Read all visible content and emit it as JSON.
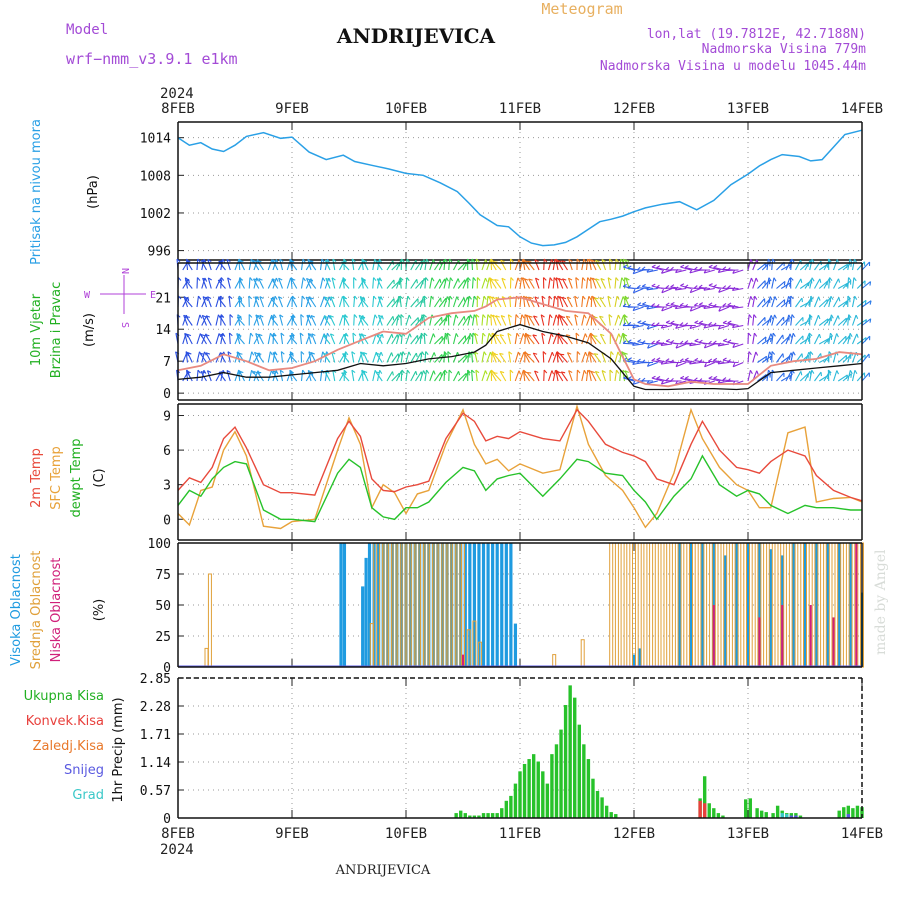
{
  "header": {
    "model_label": "Model",
    "model_name": "wrf−nmm_v3.9.1 e1km",
    "station": "ANDRIJEVICA",
    "product": "Meteogram",
    "lonlat": "lon,lat (19.7812E, 42.7188N)",
    "elevation": "Nadmorska Visina 779m",
    "model_elevation": "Nadmorska Visina u modelu 1045.44m"
  },
  "footer": {
    "station": "ANDRIJEVICA",
    "credit": "made by Angel"
  },
  "time_axis": {
    "year": "2024",
    "labels": [
      "8FEB",
      "9FEB",
      "10FEB",
      "11FEB",
      "12FEB",
      "13FEB",
      "14FEB"
    ]
  },
  "colors": {
    "pressure": "#2aa0e6",
    "temp2m": "#e84a3c",
    "sfc_temp": "#e8a23a",
    "dewpoint": "#27c22a",
    "high_cloud": "#1f9be0",
    "mid_cloud": "#e0a03a",
    "low_cloud": "#d0207a",
    "precip_total": "#27c22a",
    "precip_conv": "#e8403c",
    "precip_frozen": "#e8782a",
    "snow": "#5a5ae0",
    "hail": "#3ac8c8",
    "wind_axis": "#b040d8"
  },
  "chart_data": [
    {
      "id": "pressure",
      "type": "line",
      "ylabel_left": "Pritisak na nivou mora",
      "unit": "(hPa)",
      "yticks": [
        996,
        1002,
        1008,
        1014
      ],
      "ylim": [
        994.5,
        1016.5
      ],
      "x_days": [
        0,
        0.1,
        0.2,
        0.3,
        0.4,
        0.5,
        0.6,
        0.75,
        0.9,
        1.0,
        1.15,
        1.3,
        1.45,
        1.55,
        1.7,
        1.85,
        2.0,
        2.15,
        2.3,
        2.45,
        2.55,
        2.65,
        2.8,
        2.9,
        3.0,
        3.1,
        3.2,
        3.3,
        3.4,
        3.5,
        3.6,
        3.7,
        3.8,
        3.9,
        4.0,
        4.1,
        4.25,
        4.4,
        4.55,
        4.7,
        4.85,
        5.0,
        5.1,
        5.2,
        5.3,
        5.45,
        5.55,
        5.65,
        5.75,
        5.85,
        6.0
      ],
      "values": [
        1014,
        1012.8,
        1013.2,
        1012.2,
        1011.8,
        1012.8,
        1014.2,
        1014.8,
        1013.9,
        1014.1,
        1011.7,
        1010.5,
        1011.2,
        1010.2,
        1009.6,
        1009.0,
        1008.3,
        1008.0,
        1006.8,
        1005.4,
        1003.6,
        1001.7,
        1000.0,
        999.8,
        998.2,
        997.2,
        996.8,
        996.9,
        997.3,
        998.2,
        999.4,
        1000.6,
        1001.0,
        1001.5,
        1002.2,
        1002.8,
        1003.4,
        1003.8,
        1002.5,
        1004.0,
        1006.5,
        1008.2,
        1009.5,
        1010.5,
        1011.3,
        1011.0,
        1010.3,
        1010.5,
        1012.5,
        1014.5,
        1015.2
      ]
    },
    {
      "id": "wind",
      "type": "line",
      "ylabel_left": "10m Vjetar",
      "ylabel_left2": "Brzina i Pravac",
      "unit": "(m/s)",
      "direction_labels": {
        "west": "W",
        "east": "E",
        "north": "N",
        "south": "S"
      },
      "yticks": [
        0,
        7,
        14,
        21
      ],
      "ylim": [
        -1.5,
        28.5
      ],
      "x_days": [
        0,
        0.2,
        0.4,
        0.6,
        0.8,
        1.0,
        1.2,
        1.4,
        1.6,
        1.8,
        2.0,
        2.2,
        2.4,
        2.6,
        2.7,
        2.8,
        3.0,
        3.2,
        3.4,
        3.6,
        3.8,
        4.0,
        4.1,
        4.3,
        4.5,
        4.7,
        4.9,
        5.0,
        5.2,
        5.4,
        5.6,
        5.8,
        6.0
      ],
      "gust": [
        5.0,
        6.0,
        8.5,
        7.0,
        5.0,
        5.5,
        7.0,
        9.5,
        11.5,
        13.5,
        13.0,
        16.5,
        17.5,
        18.0,
        19.0,
        20.5,
        21.0,
        19.5,
        18.0,
        17.5,
        13.0,
        3.0,
        2.0,
        1.5,
        2.5,
        2.0,
        2.0,
        2.0,
        6.0,
        7.0,
        7.5,
        9.0,
        8.5
      ],
      "speed": [
        3.0,
        3.5,
        4.5,
        3.5,
        3.5,
        4.0,
        4.5,
        5.0,
        6.5,
        6.0,
        6.5,
        7.5,
        8.0,
        9.0,
        10.5,
        13.5,
        15.0,
        13.5,
        12.5,
        11.0,
        7.5,
        1.5,
        0.8,
        0.8,
        1.0,
        1.0,
        0.8,
        1.0,
        4.5,
        5.0,
        5.5,
        6.0,
        6.5
      ]
    },
    {
      "id": "temperature",
      "type": "line",
      "ylabels_left": [
        "2m Temp",
        "SFC Temp",
        "dewpt Temp"
      ],
      "unit": "(C)",
      "yticks": [
        0,
        3,
        6,
        9
      ],
      "ylim": [
        -1.8,
        10.0
      ],
      "x_days": [
        0,
        0.1,
        0.2,
        0.3,
        0.4,
        0.5,
        0.6,
        0.75,
        0.9,
        1.0,
        1.2,
        1.4,
        1.5,
        1.6,
        1.7,
        1.8,
        1.9,
        2.0,
        2.1,
        2.2,
        2.35,
        2.5,
        2.6,
        2.7,
        2.8,
        2.9,
        3.0,
        3.2,
        3.35,
        3.5,
        3.6,
        3.75,
        3.9,
        4.0,
        4.1,
        4.2,
        4.35,
        4.5,
        4.6,
        4.75,
        4.9,
        5.0,
        5.1,
        5.2,
        5.35,
        5.5,
        5.6,
        5.75,
        5.9,
        6.0
      ],
      "series": [
        {
          "name": "2m Temp",
          "values": [
            2.5,
            3.6,
            3.2,
            4.5,
            7.0,
            8.0,
            6.2,
            3.0,
            2.3,
            2.3,
            2.1,
            7.0,
            8.5,
            7.2,
            3.5,
            2.5,
            2.4,
            2.8,
            3.0,
            3.3,
            7.0,
            9.2,
            8.5,
            6.8,
            7.2,
            7.0,
            7.6,
            7.0,
            6.8,
            9.5,
            8.5,
            6.5,
            5.8,
            5.5,
            5.0,
            3.5,
            3.0,
            6.5,
            8.5,
            6.0,
            4.5,
            4.3,
            4.0,
            5.0,
            6.0,
            5.5,
            3.8,
            2.5,
            1.9,
            1.6
          ]
        },
        {
          "name": "SFC Temp",
          "values": [
            0.5,
            -0.5,
            2.5,
            2.8,
            6.0,
            7.6,
            5.5,
            -0.6,
            -0.8,
            -0.2,
            0.0,
            6.0,
            8.8,
            6.5,
            1.0,
            3.0,
            2.3,
            0.5,
            2.2,
            2.5,
            6.5,
            9.5,
            6.5,
            4.8,
            5.2,
            4.2,
            4.8,
            4.0,
            4.3,
            9.8,
            6.5,
            3.8,
            2.5,
            1.0,
            -0.7,
            0.5,
            4.0,
            9.5,
            7.0,
            4.5,
            3.0,
            2.5,
            1.0,
            1.0,
            7.5,
            8.0,
            1.5,
            1.8,
            1.9,
            1.5
          ]
        },
        {
          "name": "dewpt Temp",
          "values": [
            1.2,
            2.5,
            2.0,
            3.5,
            4.5,
            5.0,
            4.8,
            0.8,
            0.0,
            0.0,
            -0.2,
            4.0,
            5.2,
            4.5,
            1.0,
            0.2,
            0.0,
            1.0,
            1.0,
            1.5,
            3.2,
            4.5,
            4.2,
            2.5,
            3.5,
            3.8,
            4.0,
            2.0,
            3.5,
            5.2,
            5.0,
            4.0,
            3.8,
            2.5,
            1.5,
            0.0,
            2.0,
            3.5,
            5.5,
            3.0,
            2.0,
            2.5,
            2.2,
            1.2,
            0.5,
            1.2,
            1.0,
            1.0,
            0.8,
            0.8
          ]
        }
      ]
    },
    {
      "id": "cloud",
      "type": "bar",
      "ylabels_left": [
        "Visoka Oblacnost",
        "Srednja Oblacnost",
        "Niska Oblacnost"
      ],
      "unit": "(%)",
      "yticks": [
        0,
        25,
        50,
        75,
        100
      ],
      "ylim": [
        0,
        100
      ],
      "series": [
        {
          "name": "Visoka Oblacnost",
          "x_days": [
            1.43,
            1.46,
            1.62,
            1.65,
            1.68,
            1.72,
            1.76,
            1.8,
            1.84,
            1.88,
            1.92,
            1.96,
            2.0,
            2.04,
            2.08,
            2.12,
            2.16,
            2.2,
            2.24,
            2.28,
            2.32,
            2.36,
            2.4,
            2.44,
            2.48,
            2.52,
            2.56,
            2.6,
            2.64,
            2.68,
            2.72,
            2.76,
            2.8,
            2.84,
            2.88,
            2.92,
            2.96,
            4.0,
            4.05,
            4.4,
            4.5,
            4.6,
            4.7,
            4.8,
            4.9,
            5.0,
            5.1,
            5.2,
            5.3,
            5.4,
            5.5,
            5.6,
            5.7,
            5.8,
            5.9,
            6.0
          ],
          "values": [
            100,
            100,
            65,
            88,
            100,
            100,
            100,
            100,
            100,
            100,
            100,
            100,
            100,
            100,
            100,
            100,
            100,
            100,
            100,
            100,
            100,
            100,
            100,
            100,
            100,
            100,
            100,
            100,
            100,
            100,
            100,
            100,
            100,
            100,
            100,
            100,
            35,
            10,
            15,
            100,
            100,
            100,
            100,
            90,
            100,
            100,
            100,
            95,
            90,
            100,
            100,
            100,
            100,
            100,
            100,
            60
          ]
        },
        {
          "name": "Srednja Oblacnost",
          "x_days": [
            0.25,
            0.28,
            1.7,
            1.73,
            1.78,
            1.82,
            1.86,
            1.9,
            1.94,
            1.98,
            2.02,
            2.06,
            2.1,
            2.14,
            2.18,
            2.22,
            2.26,
            2.3,
            2.34,
            2.38,
            2.42,
            2.46,
            2.5,
            2.55,
            2.6,
            2.65,
            3.3,
            3.55,
            3.8,
            3.85,
            3.9,
            3.95,
            4.0,
            4.05,
            4.1,
            4.15,
            4.2,
            4.25,
            4.3,
            4.35,
            4.4,
            4.45,
            4.5,
            4.55,
            4.6,
            4.65,
            4.7,
            4.75,
            4.8,
            4.85,
            4.9,
            4.95,
            5.0,
            5.05,
            5.1,
            5.15,
            5.2,
            5.25,
            5.3,
            5.35,
            5.4,
            5.45,
            5.5,
            5.55,
            5.6,
            5.65,
            5.7,
            5.75,
            5.8,
            5.85,
            5.9,
            5.95,
            6.0
          ],
          "values": [
            15,
            75,
            35,
            100,
            100,
            100,
            100,
            100,
            100,
            100,
            100,
            100,
            100,
            100,
            100,
            100,
            100,
            100,
            100,
            100,
            100,
            100,
            100,
            30,
            37,
            20,
            10,
            22,
            100,
            100,
            100,
            100,
            100,
            100,
            100,
            100,
            100,
            100,
            100,
            100,
            100,
            100,
            100,
            100,
            100,
            100,
            100,
            100,
            100,
            100,
            100,
            100,
            100,
            100,
            100,
            100,
            100,
            100,
            100,
            100,
            100,
            100,
            100,
            100,
            100,
            100,
            100,
            100,
            100,
            100,
            100,
            100,
            100
          ]
        },
        {
          "name": "Niska Oblacnost",
          "x_days": [
            2.5,
            4.7,
            5.1,
            5.3,
            5.55,
            5.75,
            5.95
          ],
          "values": [
            10,
            50,
            40,
            50,
            50,
            40,
            100
          ]
        }
      ]
    },
    {
      "id": "precip",
      "type": "bar",
      "ylabels_left": [
        "Ukupna Kisa",
        "Konvek.Kisa",
        "Zaledj.Kisa",
        "Snijeg",
        "Grad"
      ],
      "ylabel": "1hr Precip (mm)",
      "yticks": [
        0,
        0.57,
        1.14,
        1.71,
        2.28,
        2.85
      ],
      "ylim": [
        0,
        2.85
      ],
      "series": [
        {
          "name": "Ukupna Kisa",
          "x_days": [
            2.44,
            2.48,
            2.52,
            2.56,
            2.6,
            2.64,
            2.68,
            2.72,
            2.76,
            2.8,
            2.84,
            2.88,
            2.92,
            2.96,
            3.0,
            3.04,
            3.08,
            3.12,
            3.16,
            3.2,
            3.24,
            3.28,
            3.32,
            3.36,
            3.4,
            3.44,
            3.48,
            3.52,
            3.56,
            3.6,
            3.64,
            3.68,
            3.72,
            3.76,
            3.8,
            3.84,
            4.58,
            4.62,
            4.66,
            4.7,
            4.74,
            4.78,
            4.98,
            5.02,
            5.08,
            5.12,
            5.16,
            5.22,
            5.26,
            5.3,
            5.34,
            5.38,
            5.42,
            5.46,
            5.8,
            5.84,
            5.88,
            5.92,
            5.96,
            6.0
          ],
          "values": [
            0.1,
            0.15,
            0.1,
            0.05,
            0.05,
            0.05,
            0.1,
            0.1,
            0.1,
            0.1,
            0.2,
            0.35,
            0.45,
            0.7,
            0.95,
            1.1,
            1.2,
            1.3,
            1.15,
            0.95,
            0.7,
            1.3,
            1.5,
            1.8,
            2.3,
            2.7,
            2.45,
            1.9,
            1.5,
            1.2,
            0.8,
            0.55,
            0.42,
            0.25,
            0.12,
            0.08,
            0.4,
            0.85,
            0.3,
            0.2,
            0.1,
            0.05,
            0.38,
            0.4,
            0.2,
            0.15,
            0.12,
            0.1,
            0.25,
            0.15,
            0.1,
            0.1,
            0.1,
            0.05,
            0.15,
            0.22,
            0.25,
            0.2,
            0.25,
            0.22
          ]
        },
        {
          "name": "Konvek.Kisa",
          "x_days": [
            4.58,
            4.62
          ],
          "values": [
            0.35,
            0.3
          ]
        },
        {
          "name": "Snijeg",
          "x_days": [
            5.38,
            5.42,
            5.88
          ],
          "values": [
            0.05,
            0.05,
            0.08
          ]
        },
        {
          "name": "Grad",
          "x_days": [
            5.3,
            5.34
          ],
          "values": [
            0.1,
            0.08
          ]
        }
      ]
    }
  ]
}
